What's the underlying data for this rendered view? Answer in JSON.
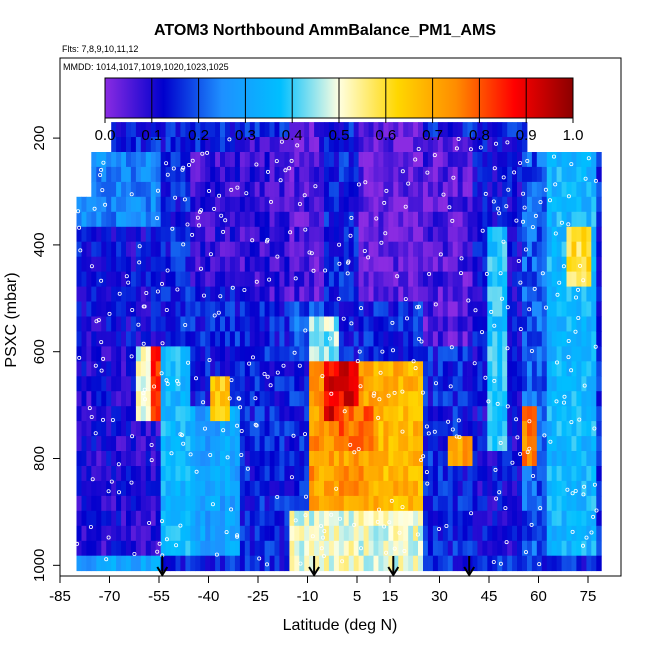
{
  "chart_data": {
    "type": "heatmap",
    "title": "ATOM3 Northbound AmmBalance_PM1_AMS",
    "flights_label": "Flts: 7,8,9,10,11,12",
    "dates_label": "MMDD: 1014,1017,1019,1020,1023,1025",
    "xlabel": "Latitude (deg N)",
    "ylabel": "PSXC (mbar)",
    "xlim": [
      -85,
      85
    ],
    "ylim": [
      1020,
      50
    ],
    "y_reversed": true,
    "x_ticks": [
      -85,
      -70,
      -55,
      -40,
      -25,
      -10,
      5,
      15,
      30,
      45,
      60,
      75
    ],
    "x_tick_labels": [
      "-85",
      "-70",
      "-55",
      "-40",
      "-25",
      "-10",
      "5",
      "15",
      "30",
      "45",
      "60",
      "75"
    ],
    "y_ticks": [
      200,
      400,
      600,
      800,
      1000
    ],
    "y_tick_labels": [
      "200",
      "400",
      "600",
      "800",
      "1000"
    ],
    "colorbar": {
      "range": [
        0,
        1
      ],
      "ticks": [
        0.0,
        0.1,
        0.2,
        0.3,
        0.4,
        0.5,
        0.6,
        0.7,
        0.8,
        0.9,
        1.0
      ],
      "tick_labels": [
        "0.0",
        "0.1",
        "0.2",
        "0.3",
        "0.4",
        "0.5",
        "0.6",
        "0.7",
        "0.8",
        "0.9",
        "1.0"
      ],
      "colors": [
        "#8a2be2",
        "#0000cd",
        "#1e90ff",
        "#00bfff",
        "#ffffe0",
        "#ffd700",
        "#ff8c00",
        "#ff0000",
        "#8b0000"
      ]
    },
    "profile_markers_lat": [
      -54,
      -8,
      16,
      39
    ],
    "regions": [
      {
        "lat": [
          -80,
          -55
        ],
        "p": [
          220,
          360
        ],
        "v": 0.25
      },
      {
        "lat": [
          -80,
          -55
        ],
        "p": [
          360,
          600
        ],
        "v": 0.12
      },
      {
        "lat": [
          -80,
          -55
        ],
        "p": [
          600,
          980
        ],
        "v": 0.1
      },
      {
        "lat": [
          -80,
          -55
        ],
        "p": [
          980,
          1010
        ],
        "v": 0.3
      },
      {
        "lat": [
          -62,
          -55
        ],
        "p": [
          600,
          720
        ],
        "v": 0.5
      },
      {
        "lat": [
          -57,
          -52
        ],
        "p": [
          580,
          720
        ],
        "v": 0.85
      },
      {
        "lat": [
          -55,
          -45
        ],
        "p": [
          600,
          980
        ],
        "v": 0.35
      },
      {
        "lat": [
          -45,
          -30
        ],
        "p": [
          220,
          480
        ],
        "v": 0.08
      },
      {
        "lat": [
          -45,
          -30
        ],
        "p": [
          480,
          700
        ],
        "v": 0.15
      },
      {
        "lat": [
          -45,
          -30
        ],
        "p": [
          700,
          980
        ],
        "v": 0.3
      },
      {
        "lat": [
          -40,
          -34
        ],
        "p": [
          640,
          720
        ],
        "v": 0.65
      },
      {
        "lat": [
          -30,
          -15
        ],
        "p": [
          200,
          500
        ],
        "v": 0.08
      },
      {
        "lat": [
          -30,
          -15
        ],
        "p": [
          500,
          980
        ],
        "v": 0.15
      },
      {
        "lat": [
          -15,
          -5
        ],
        "p": [
          180,
          500
        ],
        "v": 0.05
      },
      {
        "lat": [
          -15,
          -5
        ],
        "p": [
          500,
          580
        ],
        "v": 0.2
      },
      {
        "lat": [
          -10,
          0
        ],
        "p": [
          540,
          620
        ],
        "v": 0.45
      },
      {
        "lat": [
          -10,
          15
        ],
        "p": [
          620,
          900
        ],
        "v": 0.72
      },
      {
        "lat": [
          -5,
          5
        ],
        "p": [
          620,
          720
        ],
        "v": 0.9
      },
      {
        "lat": [
          0,
          15
        ],
        "p": [
          700,
          800
        ],
        "v": 0.78
      },
      {
        "lat": [
          -15,
          25
        ],
        "p": [
          900,
          1010
        ],
        "v": 0.5
      },
      {
        "lat": [
          5,
          25
        ],
        "p": [
          180,
          500
        ],
        "v": 0.03
      },
      {
        "lat": [
          10,
          25
        ],
        "p": [
          620,
          900
        ],
        "v": 0.68
      },
      {
        "lat": [
          25,
          40
        ],
        "p": [
          200,
          600
        ],
        "v": 0.05
      },
      {
        "lat": [
          25,
          40
        ],
        "p": [
          600,
          980
        ],
        "v": 0.15
      },
      {
        "lat": [
          32,
          40
        ],
        "p": [
          760,
          820
        ],
        "v": 0.7
      },
      {
        "lat": [
          40,
          55
        ],
        "p": [
          200,
          980
        ],
        "v": 0.12
      },
      {
        "lat": [
          44,
          50
        ],
        "p": [
          380,
          800
        ],
        "v": 0.38
      },
      {
        "lat": [
          55,
          62
        ],
        "p": [
          200,
          980
        ],
        "v": 0.2
      },
      {
        "lat": [
          62,
          78
        ],
        "p": [
          200,
          980
        ],
        "v": 0.35
      },
      {
        "lat": [
          68,
          76
        ],
        "p": [
          380,
          480
        ],
        "v": 0.6
      },
      {
        "lat": [
          55,
          60
        ],
        "p": [
          700,
          820
        ],
        "v": 0.75
      }
    ]
  }
}
